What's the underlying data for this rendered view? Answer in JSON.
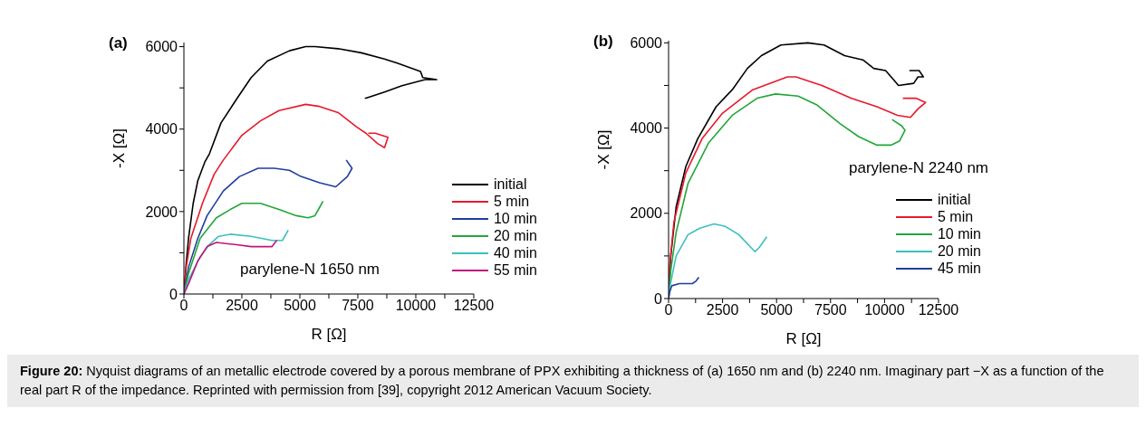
{
  "chart_data": [
    {
      "type": "line",
      "xlabel": "R [Ω]",
      "ylabel": "-X [Ω]",
      "legend": "bottom right",
      "grid": false,
      "marker": "none",
      "line_style": "solid",
      "xlim": [
        0,
        12500
      ],
      "ylim": [
        0,
        6100
      ],
      "xticks": [
        0,
        {
          "value": 1250,
          "label": null
        },
        2500,
        {
          "value": 3750,
          "label": null
        },
        5000,
        {
          "value": 6250,
          "label": null
        },
        7500,
        {
          "value": 8750,
          "label": null
        },
        10000,
        {
          "value": 11250,
          "label": null
        },
        12500
      ],
      "yticks": [
        0,
        {
          "value": 1000,
          "label": null
        },
        2000,
        {
          "value": 3000,
          "label": null
        },
        4000,
        {
          "value": 5000,
          "label": null
        },
        6000
      ],
      "annotations": [
        "(a)",
        "parylene-N 1650 nm"
      ],
      "series": [
        {
          "name": "initial",
          "color": "#000000",
          "x": [
            0,
            100,
            200,
            400,
            600,
            900,
            1100,
            1600,
            2300,
            2900,
            3600,
            4550,
            5250,
            5650,
            6650,
            7650,
            8650,
            9200,
            10200,
            10300,
            10900,
            10400,
            9400,
            8650,
            7850,
            7800
          ],
          "values": [
            0,
            750,
            1350,
            2200,
            2750,
            3200,
            3400,
            4150,
            4750,
            5250,
            5650,
            5900,
            6000,
            6000,
            5950,
            5850,
            5700,
            5600,
            5400,
            5250,
            5200,
            5200,
            5050,
            4900,
            4750,
            4750
          ]
        },
        {
          "name": "5 min",
          "color": "#e8192c",
          "x": [
            0,
            100,
            300,
            800,
            1300,
            1700,
            2500,
            3300,
            4100,
            5250,
            5850,
            6650,
            7450,
            7850,
            8350,
            8650,
            8800,
            8250,
            7950
          ],
          "values": [
            0,
            650,
            1350,
            2200,
            2900,
            3250,
            3850,
            4200,
            4450,
            4600,
            4550,
            4400,
            4050,
            3900,
            3650,
            3550,
            3800,
            3900,
            3900
          ]
        },
        {
          "name": "10 min",
          "color": "#1f3e9e",
          "x": [
            0,
            200,
            600,
            1000,
            1700,
            2400,
            3200,
            3900,
            4550,
            5050,
            5850,
            6550,
            7050,
            7250,
            7000
          ],
          "values": [
            0,
            650,
            1350,
            1900,
            2500,
            2850,
            3050,
            3050,
            3000,
            2850,
            2700,
            2600,
            2850,
            3050,
            3250
          ]
        },
        {
          "name": "20 min",
          "color": "#22a637",
          "x": [
            0,
            200,
            700,
            1400,
            2000,
            2500,
            3300,
            4100,
            4850,
            5350,
            5650,
            5900,
            6000
          ],
          "values": [
            0,
            500,
            1350,
            1850,
            2050,
            2200,
            2200,
            2050,
            1900,
            1850,
            1900,
            2150,
            2250
          ]
        },
        {
          "name": "40 min",
          "color": "#3dbfbf",
          "x": [
            0,
            200,
            700,
            1100,
            1500,
            2000,
            2900,
            3800,
            4250,
            4500
          ],
          "values": [
            0,
            350,
            900,
            1200,
            1400,
            1450,
            1400,
            1300,
            1300,
            1550
          ]
        },
        {
          "name": "55 min",
          "color": "#c0147f",
          "x": [
            0,
            200,
            600,
            1000,
            1400,
            2200,
            2900,
            3800,
            4000
          ],
          "values": [
            0,
            250,
            800,
            1150,
            1250,
            1200,
            1150,
            1150,
            1300
          ]
        }
      ]
    },
    {
      "type": "line",
      "xlabel": "R [Ω]",
      "ylabel": "-X [Ω]",
      "legend": "bottom right",
      "grid": false,
      "marker": "none",
      "line_style": "solid",
      "xlim": [
        0,
        12500
      ],
      "ylim": [
        0,
        6050
      ],
      "xticks": [
        0,
        {
          "value": 1250,
          "label": null
        },
        2500,
        {
          "value": 3750,
          "label": null
        },
        5000,
        {
          "value": 6250,
          "label": null
        },
        7500,
        {
          "value": 8750,
          "label": null
        },
        10000,
        {
          "value": 11250,
          "label": null
        },
        12500
      ],
      "yticks": [
        0,
        {
          "value": 1000,
          "label": null
        },
        2000,
        {
          "value": 3000,
          "label": null
        },
        4000,
        {
          "value": 5000,
          "label": null
        },
        6000
      ],
      "annotations": [
        "(b)",
        "parylene-N 2240 nm",
        "Figure 20: Nyquist diagrams of an metallic electrode covered by a porous membrane of PPX exhibiting a thickness of (a) 1650 nm and (b) 2240 nm. Imaginary part −X as a function of the real part R of the impedance. Reprinted with permission from [39], copyright 2012 American Vacuum Society."
      ],
      "series": [
        {
          "name": "initial",
          "color": "#000000",
          "x": [
            0,
            100,
            350,
            800,
            1350,
            2200,
            2950,
            3650,
            4300,
            5200,
            6450,
            7200,
            8150,
            9000,
            9500,
            10050,
            10650,
            11350,
            11550,
            11800,
            11600,
            11150
          ],
          "values": [
            0,
            1000,
            2150,
            3100,
            3750,
            4500,
            4900,
            5400,
            5700,
            5950,
            6000,
            5950,
            5700,
            5600,
            5400,
            5350,
            5000,
            5050,
            5200,
            5200,
            5350,
            5350
          ]
        },
        {
          "name": "5 min",
          "color": "#e8192c",
          "x": [
            0,
            50,
            250,
            800,
            1550,
            2500,
            3900,
            5500,
            5900,
            7100,
            8450,
            9650,
            10600,
            11200,
            11550,
            11900,
            11450,
            10850
          ],
          "values": [
            0,
            750,
            1800,
            2950,
            3750,
            4350,
            4900,
            5200,
            5200,
            5000,
            4700,
            4500,
            4300,
            4250,
            4450,
            4600,
            4700,
            4700
          ]
        },
        {
          "name": "10 min",
          "color": "#22a637",
          "x": [
            0,
            100,
            350,
            900,
            1850,
            2950,
            4100,
            4950,
            6000,
            6850,
            7950,
            8800,
            9650,
            10300,
            10700,
            10950,
            10800,
            10350
          ],
          "values": [
            0,
            650,
            1550,
            2700,
            3650,
            4300,
            4700,
            4800,
            4750,
            4550,
            4100,
            3800,
            3600,
            3600,
            3700,
            3950,
            4050,
            4200
          ]
        },
        {
          "name": "20 min",
          "color": "#3dbfbf",
          "x": [
            0,
            50,
            350,
            900,
            1450,
            2100,
            2600,
            3250,
            4000,
            4200,
            4550
          ],
          "values": [
            0,
            250,
            1000,
            1500,
            1650,
            1750,
            1700,
            1500,
            1100,
            1200,
            1450
          ]
        },
        {
          "name": "45 min",
          "color": "#1f3e9e",
          "x": [
            0,
            50,
            150,
            500,
            1100,
            1250,
            1400
          ],
          "values": [
            0,
            150,
            300,
            350,
            350,
            400,
            500
          ]
        }
      ]
    }
  ]
}
